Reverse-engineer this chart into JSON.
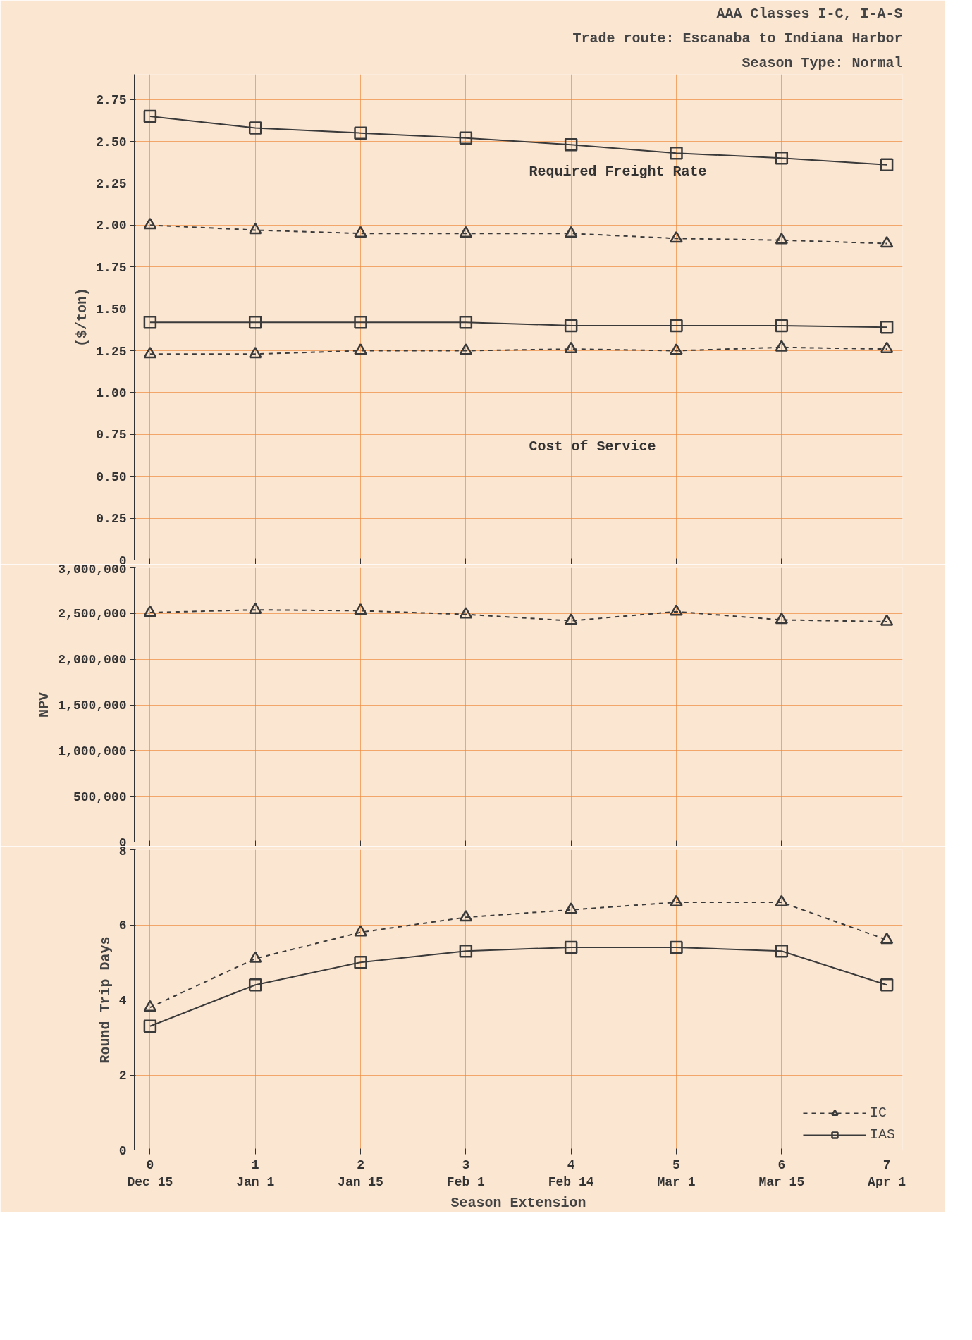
{
  "chart_data": [
    {
      "type": "line",
      "title": "AAA Classes I-C, I-A-S",
      "subtitle": "Trade route: Escanaba to Indiana Harbor",
      "annotations": [
        "Season Type: Normal",
        "Required Freight Rate",
        "Cost of Service"
      ],
      "ylabel": "($/ton)",
      "categories": [
        null,
        null,
        null,
        null,
        null,
        null,
        null,
        null
      ],
      "series": [
        {
          "color": "#3a3a3a",
          "line_style": "solid",
          "marker": "square",
          "values": [
            2.65,
            2.58,
            2.55,
            2.52,
            2.48,
            2.43,
            2.4,
            2.36
          ]
        },
        {
          "color": "#3a3a3a",
          "line_style": "dashed",
          "marker": "triangle",
          "values": [
            2.0,
            1.97,
            1.95,
            1.95,
            1.95,
            1.92,
            1.91,
            1.89
          ]
        },
        {
          "color": "#3a3a3a",
          "line_style": "solid",
          "marker": "square",
          "values": [
            1.42,
            1.42,
            1.42,
            1.42,
            1.4,
            1.4,
            1.4,
            1.39
          ]
        },
        {
          "color": "#3a3a3a",
          "line_style": "dashed",
          "marker": "triangle",
          "values": [
            1.23,
            1.23,
            1.25,
            1.25,
            1.26,
            1.25,
            1.27,
            1.26
          ]
        }
      ],
      "ylim": [
        0,
        2.9
      ],
      "yticks": [
        0,
        {
          "value": 0.25,
          "label": "0.25"
        },
        {
          "value": 0.5,
          "label": "0.50"
        },
        {
          "value": 0.75,
          "label": "0.75"
        },
        {
          "value": 1,
          "label": "1.00"
        },
        {
          "value": 1.25,
          "label": "1.25"
        },
        {
          "value": 1.5,
          "label": "1.50"
        },
        {
          "value": 1.75,
          "label": "1.75"
        },
        {
          "value": 2,
          "label": "2.00"
        },
        {
          "value": 2.25,
          "label": "2.25"
        },
        {
          "value": 2.5,
          "label": "2.50"
        },
        {
          "value": 2.75,
          "label": "2.75"
        }
      ],
      "tick_labels": "y",
      "grid": true,
      "legend": false
    },
    {
      "type": "line",
      "ylabel": "NPV",
      "categories": [
        null,
        null,
        null,
        null,
        null,
        null,
        null,
        null
      ],
      "series": [
        {
          "color": "#3a3a3a",
          "line_style": "dashed",
          "marker": "triangle",
          "values": [
            2510000,
            2540000,
            2530000,
            2490000,
            2420000,
            2520000,
            2430000,
            2410000
          ]
        }
      ],
      "ylim": [
        0,
        3000000
      ],
      "yticks": [
        0,
        {
          "value": 500000,
          "label": "500,000"
        },
        {
          "value": 1000000,
          "label": "1,000,000"
        },
        {
          "value": 1500000,
          "label": "1,500,000"
        },
        {
          "value": 2000000,
          "label": "2,000,000"
        },
        {
          "value": 2500000,
          "label": "2,500,000"
        },
        {
          "value": 3000000,
          "label": "3,000,000"
        }
      ],
      "tick_labels": "y",
      "grid": true,
      "legend": false
    },
    {
      "type": "line",
      "ylabel": "Round Trip Days",
      "xlabel": "Season Extension",
      "categories": [
        "0\nDec 15",
        "1\nJan 1",
        "2\nJan 15",
        "3\nFeb 1",
        "4\nFeb 14",
        "5\nMar 1",
        "6\nMar 15",
        "7\nApr 1"
      ],
      "series": [
        {
          "name": "IC",
          "color": "#3a3a3a",
          "line_style": "dashed",
          "marker": "triangle",
          "values": [
            3.8,
            5.1,
            5.8,
            6.2,
            6.4,
            6.6,
            6.6,
            5.6
          ]
        },
        {
          "name": "IAS",
          "color": "#3a3a3a",
          "line_style": "solid",
          "marker": "square",
          "values": [
            3.3,
            4.4,
            5.0,
            5.3,
            5.4,
            5.4,
            5.3,
            4.4
          ]
        }
      ],
      "ylim": [
        0,
        8
      ],
      "yticks": [
        0,
        2,
        4,
        6,
        8
      ],
      "grid": true,
      "legend": "bottom right"
    }
  ]
}
